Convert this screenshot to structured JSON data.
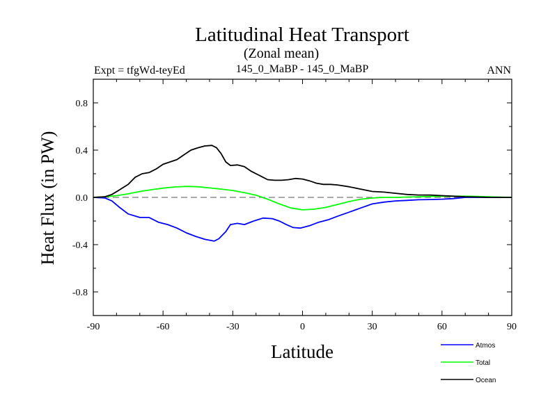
{
  "chart_data": {
    "type": "line",
    "title": "Latitudinal Heat Transport",
    "subtitle": "(Zonal mean)",
    "left_label": "Expt = tfgWd-teyEd",
    "center_label": "145_0_MaBP - 145_0_MaBP",
    "right_label": "ANN",
    "xlabel": "Latitude",
    "ylabel": "Heat Flux (in PW)",
    "xlim": [
      -90,
      90
    ],
    "ylim": [
      -1.0,
      1.0
    ],
    "xticks": [
      -90,
      -60,
      -30,
      0,
      30,
      60,
      90
    ],
    "xtick_labels": [
      "-90",
      "-60",
      "-30",
      "0",
      "30",
      "60",
      "90"
    ],
    "yticks": [
      -0.8,
      -0.4,
      0.0,
      0.4,
      0.8
    ],
    "ytick_labels": [
      "-0.8",
      "-0.4",
      "0.0",
      "0.4",
      "0.8"
    ],
    "zero_line": "dashed gray",
    "series": [
      {
        "name": "Atmos",
        "color": "#0000ff",
        "x": [
          -90,
          -85,
          -82,
          -79,
          -75,
          -70,
          -66,
          -62,
          -58,
          -54,
          -50,
          -46,
          -42,
          -38,
          -36,
          -33,
          -31,
          -28,
          -25,
          -21,
          -17,
          -13,
          -10,
          -7,
          -4,
          -1,
          0,
          3,
          7,
          11,
          15,
          20,
          25,
          30,
          35,
          40,
          45,
          50,
          55,
          60,
          65,
          70,
          80,
          90
        ],
        "values": [
          0.0,
          -0.005,
          -0.03,
          -0.08,
          -0.14,
          -0.17,
          -0.17,
          -0.21,
          -0.23,
          -0.26,
          -0.3,
          -0.33,
          -0.355,
          -0.37,
          -0.35,
          -0.29,
          -0.23,
          -0.22,
          -0.23,
          -0.2,
          -0.175,
          -0.18,
          -0.2,
          -0.23,
          -0.255,
          -0.26,
          -0.255,
          -0.24,
          -0.21,
          -0.19,
          -0.16,
          -0.125,
          -0.09,
          -0.055,
          -0.04,
          -0.03,
          -0.025,
          -0.02,
          -0.018,
          -0.015,
          -0.01,
          0.0,
          0.0,
          0.0
        ]
      },
      {
        "name": "Total",
        "color": "#00ff00",
        "x": [
          -90,
          -85,
          -80,
          -75,
          -70,
          -65,
          -60,
          -55,
          -50,
          -45,
          -40,
          -35,
          -30,
          -25,
          -20,
          -15,
          -10,
          -5,
          0,
          5,
          10,
          15,
          20,
          25,
          30,
          35,
          40,
          45,
          50,
          55,
          60,
          65,
          70,
          75,
          80,
          85,
          90
        ],
        "values": [
          0.0,
          0.005,
          0.015,
          0.03,
          0.05,
          0.065,
          0.078,
          0.088,
          0.093,
          0.09,
          0.08,
          0.07,
          0.058,
          0.04,
          0.018,
          -0.015,
          -0.055,
          -0.09,
          -0.105,
          -0.1,
          -0.085,
          -0.06,
          -0.035,
          -0.015,
          -0.005,
          0.0,
          0.0,
          0.003,
          0.005,
          0.008,
          0.01,
          0.01,
          0.01,
          0.008,
          0.005,
          0.002,
          0.0
        ]
      },
      {
        "name": "Ocean",
        "color": "#000000",
        "x": [
          -90,
          -85,
          -82,
          -79,
          -75,
          -72,
          -69,
          -66,
          -63,
          -60,
          -57,
          -54,
          -51,
          -48,
          -45,
          -42,
          -39,
          -37,
          -35,
          -33,
          -31,
          -28,
          -25,
          -22,
          -19,
          -15,
          -12,
          -9,
          -6,
          -3,
          0,
          3,
          6,
          9,
          12,
          15,
          20,
          25,
          30,
          35,
          40,
          45,
          50,
          55,
          60,
          65,
          70,
          75,
          80,
          90
        ],
        "values": [
          0.0,
          0.005,
          0.025,
          0.06,
          0.11,
          0.17,
          0.2,
          0.21,
          0.24,
          0.28,
          0.3,
          0.32,
          0.36,
          0.4,
          0.42,
          0.435,
          0.44,
          0.42,
          0.37,
          0.3,
          0.27,
          0.275,
          0.26,
          0.22,
          0.19,
          0.15,
          0.145,
          0.145,
          0.15,
          0.16,
          0.155,
          0.14,
          0.12,
          0.11,
          0.11,
          0.105,
          0.09,
          0.07,
          0.05,
          0.045,
          0.035,
          0.025,
          0.02,
          0.02,
          0.015,
          0.01,
          0.005,
          0.003,
          0.0,
          0.0
        ]
      }
    ],
    "legend": {
      "placement": "bottom-right",
      "items": [
        "Atmos",
        "Total",
        "Ocean"
      ]
    }
  }
}
